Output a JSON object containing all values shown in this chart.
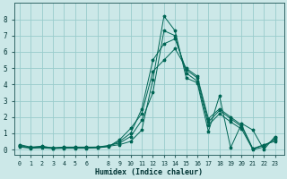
{
  "xlabel": "Humidex (Indice chaleur)",
  "bg_color": "#cce8e8",
  "grid_color": "#99cccc",
  "line_color": "#006655",
  "xtick_labels": [
    "0",
    "1",
    "2",
    "3",
    "4",
    "5",
    "6",
    "",
    "8",
    "9",
    "10",
    "11",
    "12",
    "13",
    "14",
    "15",
    "16",
    "17",
    "18",
    "19",
    "20",
    "21",
    "22",
    "23"
  ],
  "xtick_positions": [
    0,
    1,
    2,
    3,
    4,
    5,
    6,
    7,
    8,
    9,
    10,
    11,
    12,
    13,
    14,
    15,
    16,
    17,
    18,
    19,
    20,
    21,
    22,
    23
  ],
  "yticks": [
    0,
    1,
    2,
    3,
    4,
    5,
    6,
    7,
    8
  ],
  "ylim": [
    -0.3,
    9.0
  ],
  "xlim": [
    -0.5,
    23.8
  ],
  "series": [
    [
      0.3,
      0.15,
      0.2,
      0.1,
      0.15,
      0.15,
      0.15,
      0.15,
      0.2,
      0.3,
      0.5,
      1.2,
      4.3,
      8.2,
      7.3,
      4.4,
      4.1,
      1.1,
      3.3,
      0.1,
      1.6,
      1.2,
      0.0,
      0.8
    ],
    [
      0.25,
      0.12,
      0.18,
      0.1,
      0.13,
      0.13,
      0.13,
      0.15,
      0.25,
      0.4,
      0.8,
      1.8,
      3.5,
      7.3,
      7.0,
      4.7,
      4.2,
      1.5,
      2.2,
      1.7,
      1.25,
      0.0,
      0.15,
      0.7
    ],
    [
      0.2,
      0.1,
      0.15,
      0.08,
      0.1,
      0.1,
      0.1,
      0.12,
      0.2,
      0.5,
      1.0,
      2.5,
      5.5,
      6.5,
      6.8,
      4.9,
      4.4,
      1.7,
      2.4,
      1.9,
      1.4,
      0.05,
      0.25,
      0.6
    ],
    [
      0.15,
      0.08,
      0.1,
      0.06,
      0.08,
      0.08,
      0.08,
      0.1,
      0.18,
      0.6,
      1.3,
      2.2,
      4.8,
      5.5,
      6.2,
      5.0,
      4.5,
      1.9,
      2.5,
      2.0,
      1.5,
      0.05,
      0.3,
      0.5
    ]
  ]
}
